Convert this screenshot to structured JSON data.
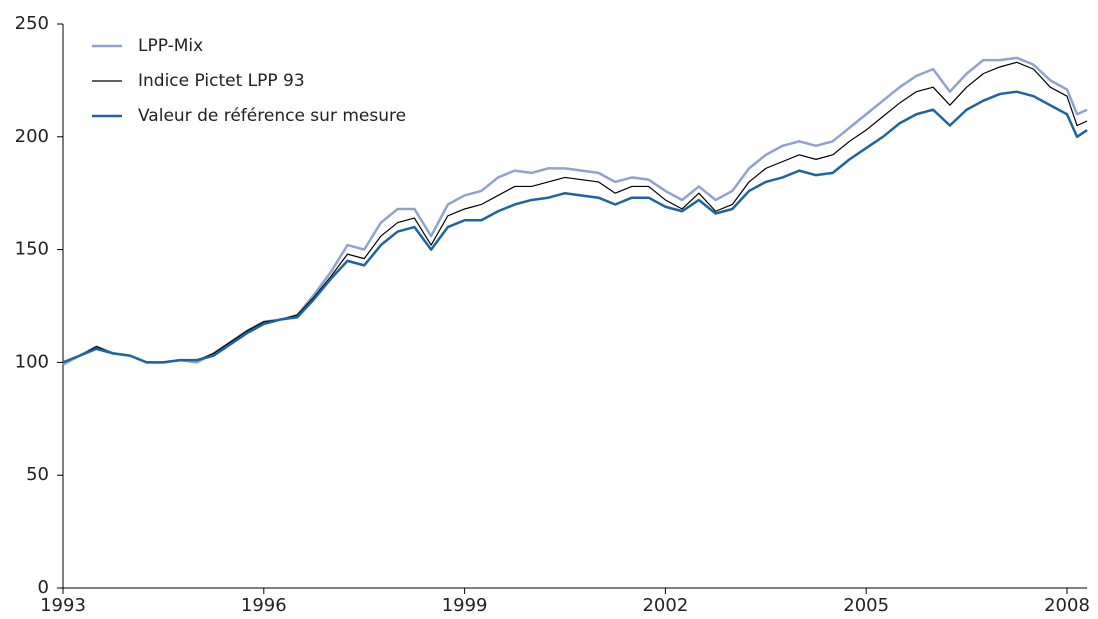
{
  "chart_data": {
    "type": "line",
    "x": [
      1993.0,
      1993.25,
      1993.5,
      1993.75,
      1994.0,
      1994.25,
      1994.5,
      1994.75,
      1995.0,
      1995.25,
      1995.5,
      1995.75,
      1996.0,
      1996.25,
      1996.5,
      1996.75,
      1997.0,
      1997.25,
      1997.5,
      1997.75,
      1998.0,
      1998.25,
      1998.5,
      1998.75,
      1999.0,
      1999.25,
      1999.5,
      1999.75,
      2000.0,
      2000.25,
      2000.5,
      2000.75,
      2001.0,
      2001.25,
      2001.5,
      2001.75,
      2002.0,
      2002.25,
      2002.5,
      2002.75,
      2003.0,
      2003.25,
      2003.5,
      2003.75,
      2004.0,
      2004.25,
      2004.5,
      2004.75,
      2005.0,
      2005.25,
      2005.5,
      2005.75,
      2006.0,
      2006.25,
      2006.5,
      2006.75,
      2007.0,
      2007.25,
      2007.5,
      2007.75,
      2008.0,
      2008.15,
      2008.3
    ],
    "series": [
      {
        "name": "LPP-Mix",
        "color": "#8fa3cc",
        "width": 2.5,
        "values": [
          99,
          103,
          107,
          104,
          103,
          100,
          100,
          101,
          100,
          104,
          109,
          114,
          118,
          119,
          121,
          130,
          140,
          152,
          150,
          162,
          168,
          168,
          156,
          170,
          174,
          176,
          182,
          185,
          184,
          186,
          186,
          185,
          184,
          180,
          182,
          181,
          176,
          172,
          178,
          172,
          176,
          186,
          192,
          196,
          198,
          196,
          198,
          204,
          210,
          216,
          222,
          227,
          230,
          220,
          228,
          234,
          234,
          235,
          232,
          225,
          221,
          210,
          212
        ]
      },
      {
        "name": "Indice Pictet LPP 93",
        "color": "#000000",
        "width": 1.2,
        "values": [
          100,
          103,
          107,
          104,
          103,
          100,
          100,
          101,
          101,
          104,
          109,
          114,
          118,
          119,
          121,
          129,
          138,
          148,
          146,
          156,
          162,
          164,
          152,
          165,
          168,
          170,
          174,
          178,
          178,
          180,
          182,
          181,
          180,
          175,
          178,
          178,
          172,
          168,
          175,
          167,
          170,
          180,
          186,
          189,
          192,
          190,
          192,
          198,
          203,
          209,
          215,
          220,
          222,
          214,
          222,
          228,
          231,
          233,
          230,
          222,
          218,
          205,
          207
        ]
      },
      {
        "name": "Valeur de référence sur mesure",
        "color": "#1f63a0",
        "width": 2.5,
        "values": [
          100,
          103,
          106,
          104,
          103,
          100,
          100,
          101,
          101,
          103,
          108,
          113,
          117,
          119,
          120,
          128,
          137,
          145,
          143,
          152,
          158,
          160,
          150,
          160,
          163,
          163,
          167,
          170,
          172,
          173,
          175,
          174,
          173,
          170,
          173,
          173,
          169,
          167,
          172,
          166,
          168,
          176,
          180,
          182,
          185,
          183,
          184,
          190,
          195,
          200,
          206,
          210,
          212,
          205,
          212,
          216,
          219,
          220,
          218,
          214,
          210,
          200,
          203
        ]
      }
    ],
    "xlim": [
      1993,
      2008.3
    ],
    "xticks": [
      1993,
      1996,
      1999,
      2002,
      2005,
      2008
    ],
    "ylim": [
      0,
      250
    ],
    "yticks": [
      0,
      50,
      100,
      150,
      200,
      250
    ],
    "legend": "top-left"
  }
}
